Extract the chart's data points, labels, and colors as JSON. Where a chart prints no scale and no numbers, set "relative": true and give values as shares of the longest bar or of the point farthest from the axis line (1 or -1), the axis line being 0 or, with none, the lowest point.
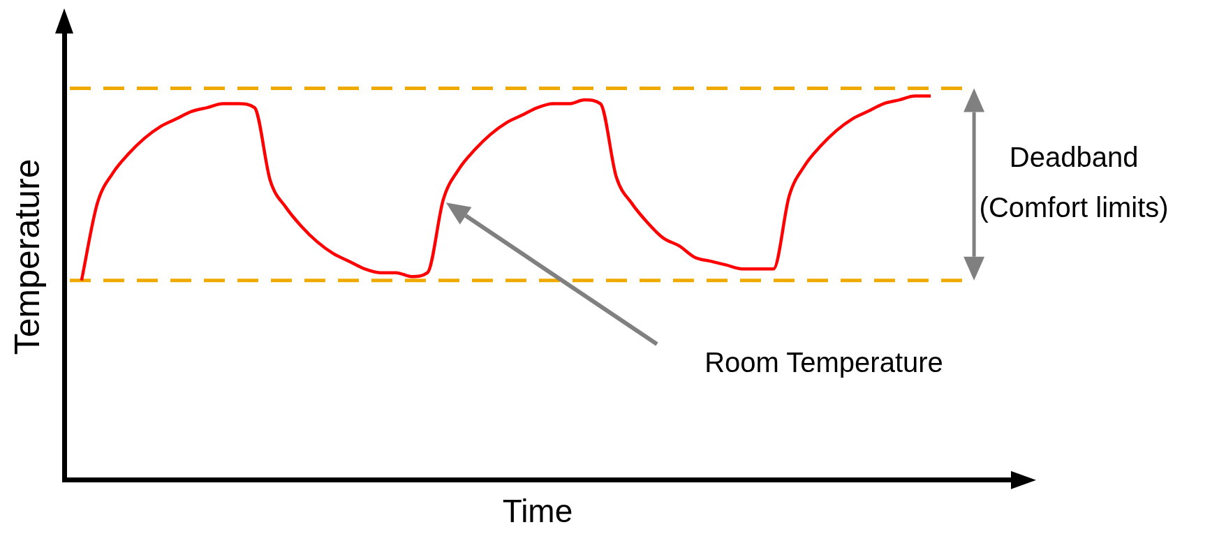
{
  "chart_data": {
    "type": "line",
    "relative": true,
    "xlabel": "Time",
    "ylabel": "Temperature",
    "categories": [
      null,
      null,
      null,
      null,
      null,
      null,
      null,
      null,
      null,
      null,
      null,
      null,
      null,
      null,
      null,
      null,
      null,
      null,
      null,
      null,
      null,
      null,
      null,
      null,
      null,
      null,
      null,
      null,
      null,
      null,
      null,
      null,
      null,
      null,
      null,
      null,
      null,
      null,
      null,
      null,
      null,
      null,
      null,
      null,
      null,
      null,
      null,
      null,
      null,
      null,
      null,
      null,
      null,
      null,
      null
    ],
    "series": [
      {
        "color": "#ff0000",
        "values": [
          0.52,
          0.72,
          0.8,
          0.85,
          0.89,
          0.92,
          0.94,
          0.96,
          0.97,
          0.98,
          0.98,
          0.97,
          0.78,
          0.71,
          0.66,
          0.62,
          0.59,
          0.57,
          0.55,
          0.54,
          0.54,
          0.53,
          0.54,
          0.73,
          0.81,
          0.86,
          0.9,
          0.93,
          0.95,
          0.97,
          0.98,
          0.98,
          0.99,
          0.98,
          0.79,
          0.72,
          0.67,
          0.63,
          0.61,
          0.58,
          0.57,
          0.56,
          0.55,
          0.55,
          0.55,
          0.74,
          0.82,
          0.87,
          0.91,
          0.94,
          0.96,
          0.98,
          0.99,
          1.0,
          1.0
        ]
      }
    ],
    "ref_lines": [
      {
        "axis": "y",
        "value": 1.02,
        "color": "#eeaa00",
        "line_style": "dashed"
      },
      {
        "axis": "y",
        "value": 0.52,
        "color": "#eeaa00",
        "line_style": "dashed"
      }
    ],
    "annotations": [
      "Deadband\n(Comfort limits)",
      "Room Temperature"
    ],
    "grid": false,
    "legend": false,
    "marker": "none",
    "line_style": "solid"
  }
}
